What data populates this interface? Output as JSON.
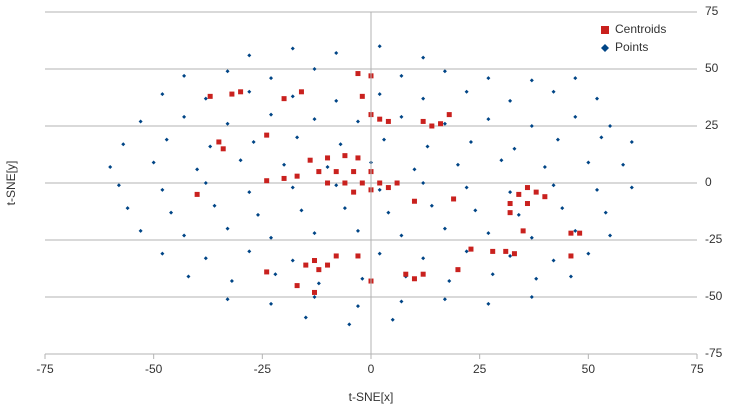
{
  "chart_data": {
    "type": "scatter",
    "xlabel": "t-SNE[x]",
    "ylabel": "t-SNE[y]",
    "xlim": [
      -75,
      75
    ],
    "xticks": [
      -75,
      -50,
      -25,
      0,
      25,
      50,
      75
    ],
    "ylim": [
      -75,
      75
    ],
    "yticks": [
      -75,
      -50,
      -25,
      0,
      25,
      50,
      75
    ],
    "grid": true,
    "legend": "top-right",
    "series": [
      {
        "name": "Centroids",
        "color": "#c9211e",
        "marker": "square",
        "x": [
          -14,
          -10,
          -6,
          -3,
          -12,
          -8,
          -4,
          0,
          -10,
          -6,
          -2,
          2,
          6,
          -4,
          0,
          4,
          -24,
          -20,
          -17,
          -37,
          -32,
          -30,
          -16,
          -20,
          -3,
          0,
          -2,
          0,
          2,
          4,
          12,
          14,
          16,
          18,
          -24,
          -35,
          -34,
          36,
          38,
          34,
          32,
          40,
          36,
          32,
          35,
          46,
          48,
          -13,
          -10,
          -15,
          -12,
          -24,
          -17,
          -13,
          -8,
          -3,
          0,
          8,
          12,
          10,
          28,
          31,
          33,
          23,
          20,
          46,
          -40,
          19,
          10
        ],
        "y": [
          10,
          11,
          12,
          11,
          5,
          5,
          5,
          5,
          0,
          0,
          0,
          0,
          0,
          -4,
          -3,
          -2,
          1,
          2,
          3,
          38,
          39,
          40,
          40,
          37,
          48,
          47,
          38,
          30,
          28,
          27,
          27,
          25,
          26,
          30,
          21,
          18,
          15,
          -2,
          -4,
          -5,
          -9,
          -6,
          -9,
          -13,
          -21,
          -22,
          -22,
          -34,
          -36,
          -36,
          -38,
          -39,
          -45,
          -48,
          -32,
          -32,
          -43,
          -40,
          -40,
          -42,
          -30,
          -30,
          -31,
          -29,
          -38,
          -32,
          -5,
          -7,
          -8
        ]
      },
      {
        "name": "Points",
        "color": "#004586",
        "marker": "diamond",
        "x": [
          -28,
          -18,
          -8,
          2,
          12,
          -43,
          -33,
          -23,
          -13,
          -3,
          7,
          17,
          27,
          37,
          47,
          -48,
          -38,
          -28,
          -18,
          -8,
          2,
          12,
          22,
          32,
          42,
          52,
          -53,
          -43,
          -33,
          -23,
          -13,
          -3,
          7,
          17,
          27,
          37,
          47,
          55,
          -57,
          -47,
          -37,
          -27,
          -17,
          -7,
          3,
          13,
          23,
          33,
          43,
          53,
          60,
          -60,
          -50,
          -40,
          -30,
          -20,
          -10,
          0,
          10,
          20,
          30,
          40,
          50,
          58,
          -58,
          -48,
          -38,
          -28,
          -18,
          -8,
          2,
          12,
          22,
          32,
          42,
          52,
          60,
          -56,
          -46,
          -36,
          -26,
          -16,
          -6,
          4,
          14,
          24,
          34,
          44,
          54,
          -53,
          -43,
          -33,
          -23,
          -13,
          -3,
          7,
          17,
          27,
          37,
          47,
          55,
          -48,
          -38,
          -28,
          -18,
          -8,
          2,
          12,
          22,
          32,
          42,
          50,
          -42,
          -32,
          -22,
          -12,
          -2,
          8,
          18,
          28,
          38,
          46,
          -33,
          -23,
          -13,
          -3,
          7,
          17,
          27,
          37,
          -15,
          -5,
          5
        ],
        "y": [
          56,
          59,
          57,
          60,
          55,
          47,
          49,
          46,
          50,
          48,
          47,
          49,
          46,
          45,
          46,
          39,
          37,
          40,
          38,
          36,
          39,
          37,
          40,
          36,
          40,
          37,
          27,
          29,
          26,
          30,
          28,
          27,
          29,
          26,
          28,
          25,
          29,
          25,
          17,
          19,
          16,
          18,
          20,
          17,
          19,
          16,
          18,
          15,
          19,
          20,
          18,
          7,
          9,
          6,
          10,
          8,
          7,
          9,
          6,
          8,
          10,
          7,
          9,
          8,
          -1,
          -3,
          0,
          -4,
          -2,
          -1,
          -3,
          0,
          -2,
          -4,
          -1,
          -3,
          -2,
          -11,
          -13,
          -10,
          -14,
          -12,
          -11,
          -13,
          -10,
          -12,
          -14,
          -11,
          -13,
          -21,
          -23,
          -20,
          -24,
          -22,
          -21,
          -23,
          -20,
          -22,
          -24,
          -21,
          -23,
          -31,
          -33,
          -30,
          -34,
          -32,
          -31,
          -33,
          -30,
          -32,
          -34,
          -31,
          -41,
          -43,
          -40,
          -44,
          -42,
          -41,
          -43,
          -40,
          -42,
          -41,
          -51,
          -53,
          -50,
          -54,
          -52,
          -51,
          -53,
          -50,
          -59,
          -62,
          -60
        ]
      }
    ]
  }
}
